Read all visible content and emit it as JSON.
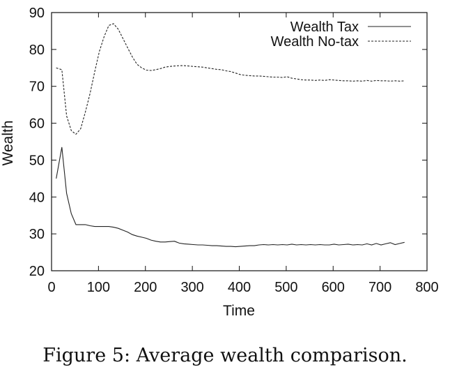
{
  "caption": "Figure 5: Average wealth comparison.",
  "chart_data": {
    "type": "line",
    "xlabel": "Time",
    "ylabel": "Wealth",
    "xlim": [
      0,
      800
    ],
    "ylim": [
      20,
      90
    ],
    "xticks": [
      0,
      100,
      200,
      300,
      400,
      500,
      600,
      700,
      800
    ],
    "yticks": [
      20,
      30,
      40,
      50,
      60,
      70,
      80,
      90
    ],
    "grid": false,
    "legend_position": "top-right",
    "series": [
      {
        "name": "Wealth Tax",
        "style": "solid",
        "color": "#222222",
        "x": [
          10,
          22,
          32,
          42,
          52,
          62,
          72,
          82,
          92,
          102,
          112,
          122,
          132,
          142,
          152,
          162,
          172,
          182,
          192,
          202,
          212,
          222,
          232,
          242,
          252,
          262,
          272,
          282,
          292,
          302,
          312,
          322,
          332,
          342,
          352,
          362,
          372,
          382,
          392,
          402,
          412,
          422,
          432,
          442,
          452,
          462,
          472,
          482,
          492,
          502,
          512,
          522,
          532,
          542,
          552,
          562,
          572,
          582,
          592,
          602,
          612,
          622,
          632,
          642,
          652,
          662,
          672,
          682,
          692,
          702,
          712,
          722,
          732,
          742,
          752
        ],
        "y": [
          45,
          53.5,
          41,
          35.5,
          32.5,
          32.5,
          32.5,
          32.2,
          32,
          32,
          32,
          32,
          31.8,
          31.5,
          31,
          30.5,
          29.8,
          29.4,
          29.1,
          28.8,
          28.3,
          28,
          27.8,
          27.8,
          27.9,
          28,
          27.5,
          27.3,
          27.2,
          27.1,
          27,
          27,
          26.9,
          26.8,
          26.8,
          26.7,
          26.6,
          26.6,
          26.5,
          26.6,
          26.7,
          26.8,
          26.8,
          27,
          27.1,
          27,
          27.1,
          27,
          27.1,
          27,
          27.2,
          27,
          27.1,
          27,
          27.1,
          27,
          27.1,
          27,
          27,
          27.2,
          27,
          27.1,
          27.2,
          27,
          27.1,
          27,
          27.3,
          27,
          27.4,
          27,
          27.3,
          27.6,
          27.1,
          27.4,
          27.7
        ]
      },
      {
        "name": "Wealth No-tax",
        "style": "dashed",
        "color": "#222222",
        "x": [
          10,
          22,
          32,
          42,
          52,
          62,
          72,
          82,
          92,
          102,
          112,
          122,
          132,
          142,
          152,
          162,
          172,
          182,
          192,
          202,
          212,
          222,
          232,
          242,
          252,
          262,
          272,
          282,
          292,
          302,
          312,
          322,
          332,
          342,
          352,
          362,
          372,
          382,
          392,
          402,
          412,
          422,
          432,
          442,
          452,
          462,
          472,
          482,
          492,
          502,
          512,
          522,
          532,
          542,
          552,
          562,
          572,
          582,
          592,
          602,
          612,
          622,
          632,
          642,
          652,
          662,
          672,
          682,
          692,
          702,
          712,
          722,
          732,
          742,
          752
        ],
        "y": [
          75,
          74.5,
          62,
          58,
          57,
          58.5,
          63,
          68,
          74,
          79.5,
          83.5,
          86.5,
          87,
          85.5,
          83,
          80.5,
          78,
          76,
          75,
          74.4,
          74.3,
          74.5,
          74.8,
          75.2,
          75.4,
          75.5,
          75.6,
          75.6,
          75.5,
          75.4,
          75.3,
          75.2,
          75,
          74.8,
          74.6,
          74.5,
          74.2,
          74,
          73.6,
          73.2,
          73,
          72.9,
          72.8,
          72.8,
          72.7,
          72.6,
          72.5,
          72.5,
          72.4,
          72.6,
          72.2,
          72,
          71.8,
          71.7,
          71.7,
          71.6,
          71.7,
          71.6,
          71.8,
          71.7,
          71.6,
          71.5,
          71.5,
          71.4,
          71.5,
          71.4,
          71.6,
          71.4,
          71.6,
          71.5,
          71.5,
          71.4,
          71.5,
          71.4,
          71.5
        ]
      }
    ]
  }
}
